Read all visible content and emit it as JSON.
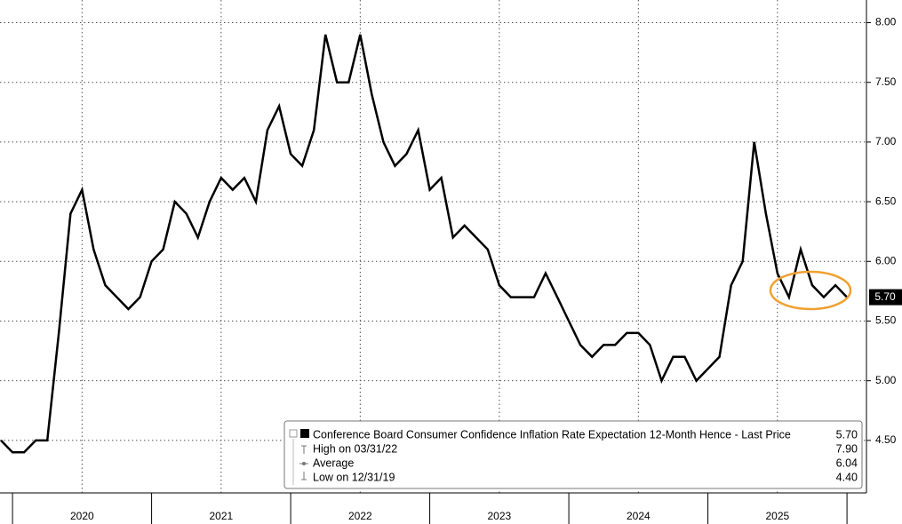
{
  "chart_data": {
    "type": "line",
    "x": [
      2019.917,
      2020,
      2020.083,
      2020.167,
      2020.25,
      2020.333,
      2020.417,
      2020.5,
      2020.583,
      2020.667,
      2020.75,
      2020.833,
      2020.917,
      2021,
      2021.083,
      2021.167,
      2021.25,
      2021.333,
      2021.417,
      2021.5,
      2021.583,
      2021.667,
      2021.75,
      2021.833,
      2021.917,
      2022,
      2022.083,
      2022.167,
      2022.25,
      2022.333,
      2022.417,
      2022.5,
      2022.583,
      2022.667,
      2022.75,
      2022.833,
      2022.917,
      2023,
      2023.083,
      2023.167,
      2023.25,
      2023.333,
      2023.417,
      2023.5,
      2023.583,
      2023.667,
      2023.75,
      2023.833,
      2023.917,
      2024,
      2024.083,
      2024.167,
      2024.25,
      2024.333,
      2024.417,
      2024.5,
      2024.583,
      2024.667,
      2024.75,
      2024.833,
      2024.917,
      2025,
      2025.083,
      2025.167,
      2025.25,
      2025.333,
      2025.417,
      2025.5,
      2025.583,
      2025.667,
      2025.75,
      2025.833,
      2025.917,
      2026
    ],
    "series": [
      {
        "name": "Conference Board Consumer Confidence Inflation Rate Expectation 12-Month Hence - Last Price",
        "color": "#000000",
        "values": [
          4.5,
          4.4,
          4.4,
          4.5,
          4.5,
          5.4,
          6.4,
          6.6,
          6.1,
          5.8,
          5.7,
          5.6,
          5.7,
          6.0,
          6.1,
          6.5,
          6.4,
          6.2,
          6.5,
          6.7,
          6.6,
          6.7,
          6.5,
          7.1,
          7.3,
          6.9,
          6.8,
          7.1,
          7.9,
          7.5,
          7.5,
          7.9,
          7.4,
          7.0,
          6.8,
          6.9,
          7.1,
          6.6,
          6.7,
          6.2,
          6.3,
          6.2,
          6.1,
          5.8,
          5.7,
          5.7,
          5.7,
          5.9,
          5.7,
          5.5,
          5.3,
          5.2,
          5.3,
          5.3,
          5.4,
          5.4,
          5.3,
          5.0,
          5.2,
          5.2,
          5.0,
          5.1,
          5.2,
          5.8,
          6.0,
          7.0,
          6.4,
          5.9,
          5.7,
          6.1,
          5.8,
          5.7,
          5.8,
          5.7
        ]
      }
    ],
    "last_price": {
      "value": 5.7,
      "label": "5.70"
    },
    "legend_stats": [
      {
        "label": "High on 03/31/22",
        "value": "7.90"
      },
      {
        "label": "Average",
        "value": "6.04"
      },
      {
        "label": "Low on 12/31/19",
        "value": "4.40"
      }
    ],
    "xlim": [
      2019.91,
      2026.14
    ],
    "xticks": [
      2020,
      2021,
      2022,
      2023,
      2024,
      2025
    ],
    "ylim": [
      4.06,
      8.19
    ],
    "yticks": [
      {
        "value": 4.5,
        "label": "4.50"
      },
      {
        "value": 5,
        "label": "5.00"
      },
      {
        "value": 5.5,
        "label": "5.50"
      },
      {
        "value": 6,
        "label": "6.00"
      },
      {
        "value": 6.5,
        "label": "6.50"
      },
      {
        "value": 7,
        "label": "7.00"
      },
      {
        "value": 7.5,
        "label": "7.50"
      },
      {
        "value": 8,
        "label": "8.00"
      }
    ],
    "grid": true
  }
}
